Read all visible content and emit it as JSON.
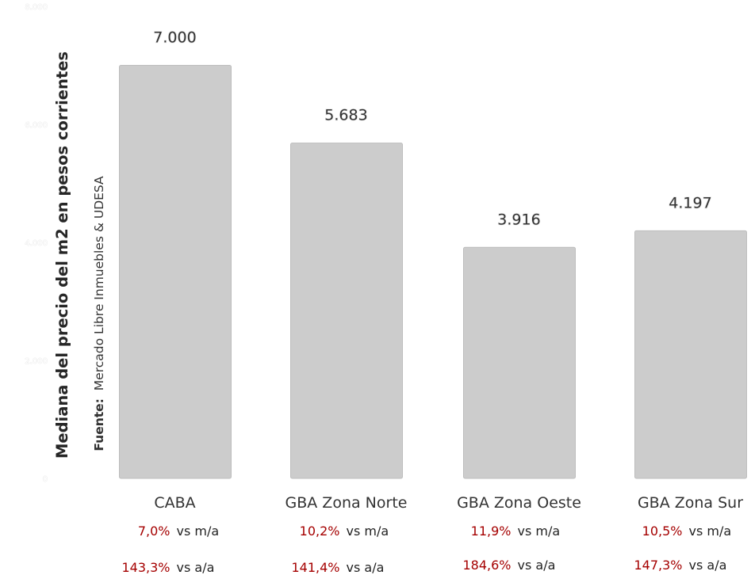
{
  "chart_data": {
    "type": "bar",
    "ylabel": "Mediana del precio del m2 en pesos corrientes",
    "source_label": "Fuente:",
    "source_text": "Mercado Libre Inmuebles & UDESA",
    "ylim": [
      0,
      8000
    ],
    "yticks": [
      0,
      2000,
      4000,
      6000,
      8000
    ],
    "ytick_labels": [
      "0",
      "2.000",
      "4.000",
      "6.000",
      "8.000"
    ],
    "categories": [
      "CABA",
      "GBA Zona Norte",
      "GBA Zona Oeste",
      "GBA Zona Sur"
    ],
    "values": [
      7000,
      5683,
      3916,
      4197
    ],
    "value_labels": [
      "7.000",
      "5.683",
      "3.916",
      "4.197"
    ],
    "grid": false,
    "bar_color": "#cccccc",
    "monthly_change": {
      "values": [
        "7,0%",
        "10,2%",
        "11,9%",
        "10,5%"
      ],
      "suffix": "vs m/a",
      "color": "#a50000"
    },
    "yearly_change": {
      "values": [
        "143,3%",
        "141,4%",
        "184,6%",
        "147,3%"
      ],
      "suffix": "vs a/a",
      "color": "#a50000"
    }
  }
}
